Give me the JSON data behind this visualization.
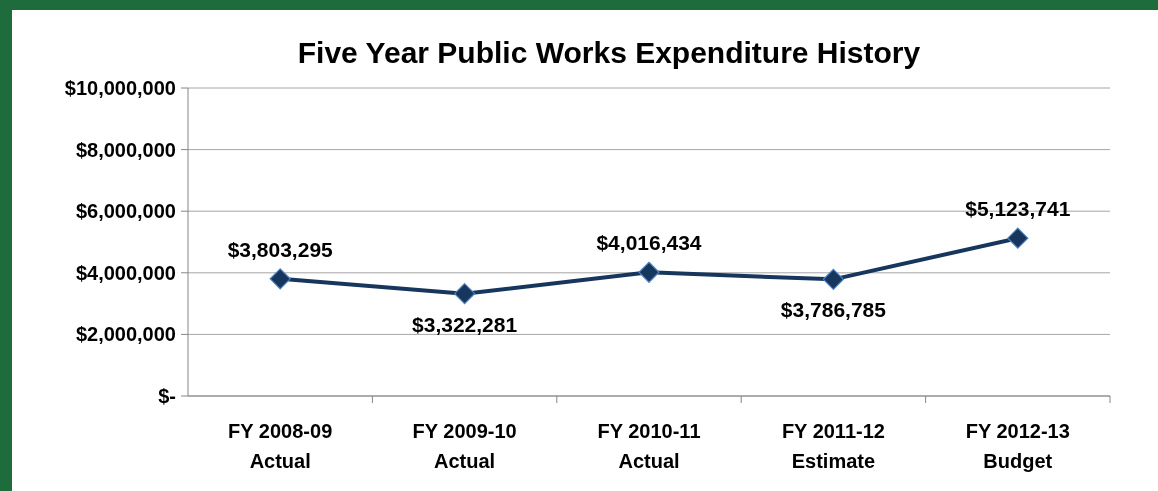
{
  "chart_data": {
    "type": "line",
    "title": "Five Year Public Works Expenditure History",
    "categories": [
      "FY 2008-09\nActual",
      "FY 2009-10\nActual",
      "FY 2010-11\nActual",
      "FY 2011-12\nEstimate",
      "FY 2012-13\nBudget"
    ],
    "series": [
      {
        "color": "#17365d",
        "values": [
          3803295,
          3322281,
          4016434,
          3786785,
          5123741
        ],
        "value_labels": [
          "$3,803,295",
          "$3,322,281",
          "$4,016,434",
          "$3,786,785",
          "$5,123,741"
        ]
      }
    ],
    "ylim": [
      0,
      10000000
    ],
    "yticks": [
      {
        "value": 0,
        "label": "$-"
      },
      {
        "value": 2000000,
        "label": "$2,000,000"
      },
      {
        "value": 4000000,
        "label": "$4,000,000"
      },
      {
        "value": 6000000,
        "label": "$6,000,000"
      },
      {
        "value": 8000000,
        "label": "$8,000,000"
      },
      {
        "value": 10000000,
        "label": "$10,000,000"
      }
    ],
    "grid": "y",
    "marker": "diamond",
    "line_style": "solid"
  }
}
